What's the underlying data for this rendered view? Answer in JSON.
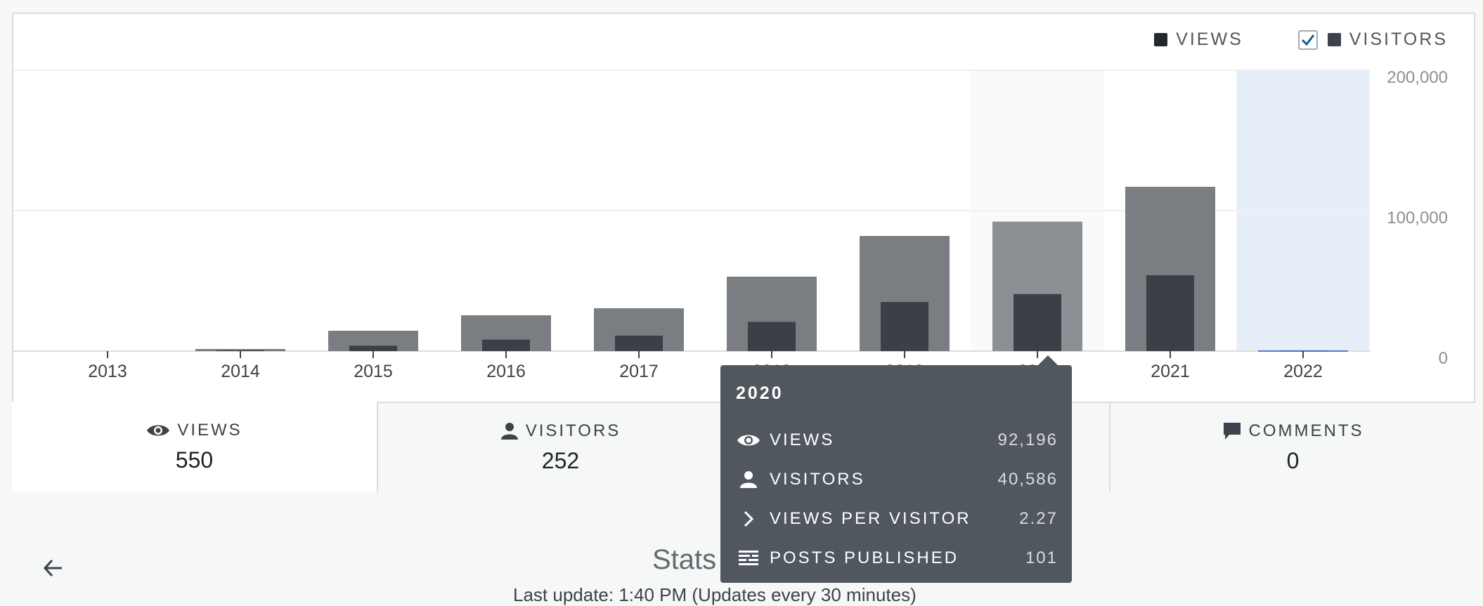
{
  "legend": {
    "views_label": "VIEWS",
    "visitors_label": "VISITORS",
    "views_color": "#23282d",
    "visitors_color": "#3c434a",
    "visitors_checked": true
  },
  "chart_data": {
    "type": "bar",
    "categories": [
      "2013",
      "2014",
      "2015",
      "2016",
      "2017",
      "2018",
      "2019",
      "2020",
      "2021",
      "2022"
    ],
    "series": [
      {
        "name": "VIEWS",
        "values": [
          0,
          1500,
          14500,
          25500,
          30500,
          53000,
          82000,
          92196,
          117000,
          550
        ]
      },
      {
        "name": "VISITORS",
        "values": [
          0,
          600,
          3800,
          8200,
          11000,
          20800,
          35000,
          40586,
          54000,
          252
        ]
      }
    ],
    "ylim": [
      0,
      200000
    ],
    "yticks": [
      0,
      100000,
      200000
    ],
    "ytick_labels": [
      "0",
      "100,000",
      "200,000"
    ],
    "grid": true,
    "hovered": "2020",
    "selected": "2022",
    "colors": {
      "views": "#7a7d82",
      "views_hover": "#8c8f94",
      "visitors": "#3c3f45",
      "selected_bg": "#e6eff9"
    }
  },
  "summary": [
    {
      "key": "views",
      "label": "VIEWS",
      "value": "550"
    },
    {
      "key": "visitors",
      "label": "VISITORS",
      "value": "252"
    },
    {
      "key": "likes",
      "label": "",
      "value": ""
    },
    {
      "key": "comments",
      "label": "COMMENTS",
      "value": "0"
    }
  ],
  "tooltip": {
    "title": "2020",
    "rows": [
      {
        "label": "VIEWS",
        "value": "92,196"
      },
      {
        "label": "VISITORS",
        "value": "40,586"
      },
      {
        "label": "VIEWS PER VISITOR",
        "value": "2.27"
      },
      {
        "label": "POSTS PUBLISHED",
        "value": "101"
      }
    ]
  },
  "footer": {
    "title": "Stats",
    "subtitle": "Last update: 1:40 PM (Updates every 30 minutes)"
  }
}
